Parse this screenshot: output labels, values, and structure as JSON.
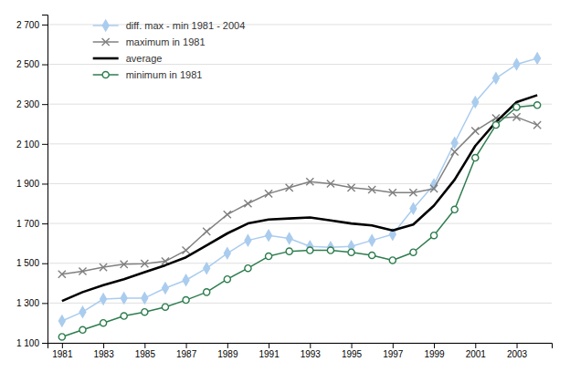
{
  "chart_data": {
    "type": "line",
    "x": [
      1981,
      1982,
      1983,
      1984,
      1985,
      1986,
      1987,
      1988,
      1989,
      1990,
      1991,
      1992,
      1993,
      1994,
      1995,
      1996,
      1997,
      1998,
      1999,
      2000,
      2001,
      2002,
      2003,
      2004
    ],
    "series": [
      {
        "name": "diff. max - min 1981 - 2004",
        "color": "#aaccee",
        "marker": "diamond",
        "values": [
          1210,
          1255,
          1320,
          1325,
          1325,
          1375,
          1415,
          1475,
          1550,
          1615,
          1640,
          1625,
          1585,
          1580,
          1585,
          1615,
          1645,
          1775,
          1895,
          2105,
          2310,
          2430,
          2500,
          2530
        ]
      },
      {
        "name": "maximum in 1981",
        "color": "#808080",
        "marker": "x",
        "values": [
          1445,
          1460,
          1480,
          1495,
          1498,
          1510,
          1565,
          1660,
          1745,
          1800,
          1850,
          1880,
          1910,
          1900,
          1880,
          1870,
          1855,
          1855,
          1875,
          2060,
          2165,
          2230,
          2235,
          2195
        ]
      },
      {
        "name": "average",
        "color": "#000000",
        "values": [
          1310,
          1355,
          1390,
          1420,
          1455,
          1490,
          1530,
          1590,
          1650,
          1700,
          1720,
          1725,
          1730,
          1715,
          1700,
          1690,
          1665,
          1695,
          1790,
          1920,
          2090,
          2210,
          2310,
          2345
        ]
      },
      {
        "name": "minimum in 1981",
        "color": "#2e7d4f",
        "marker": "circle",
        "values": [
          1130,
          1165,
          1200,
          1235,
          1255,
          1280,
          1315,
          1355,
          1420,
          1475,
          1535,
          1560,
          1565,
          1565,
          1555,
          1540,
          1515,
          1555,
          1640,
          1770,
          2030,
          2195,
          2285,
          2295
        ]
      }
    ],
    "xlim": [
      1980.3,
      2004.7
    ],
    "xticks": [
      1981,
      1983,
      1985,
      1987,
      1989,
      1991,
      1993,
      1995,
      1997,
      1999,
      2001,
      2003
    ],
    "ylim": [
      1100,
      2750
    ],
    "yticks": [
      {
        "value": 1100,
        "label": "1 100"
      },
      {
        "value": 1300,
        "label": "1 300"
      },
      {
        "value": 1500,
        "label": "1 500"
      },
      {
        "value": 1700,
        "label": "1 700"
      },
      {
        "value": 1900,
        "label": "1 900"
      },
      {
        "value": 2100,
        "label": "2 100"
      },
      {
        "value": 2300,
        "label": "2 300"
      },
      {
        "value": 2500,
        "label": "2 500"
      },
      {
        "value": 2700,
        "label": "2 700"
      }
    ],
    "grid": true,
    "legend": "upper left"
  }
}
